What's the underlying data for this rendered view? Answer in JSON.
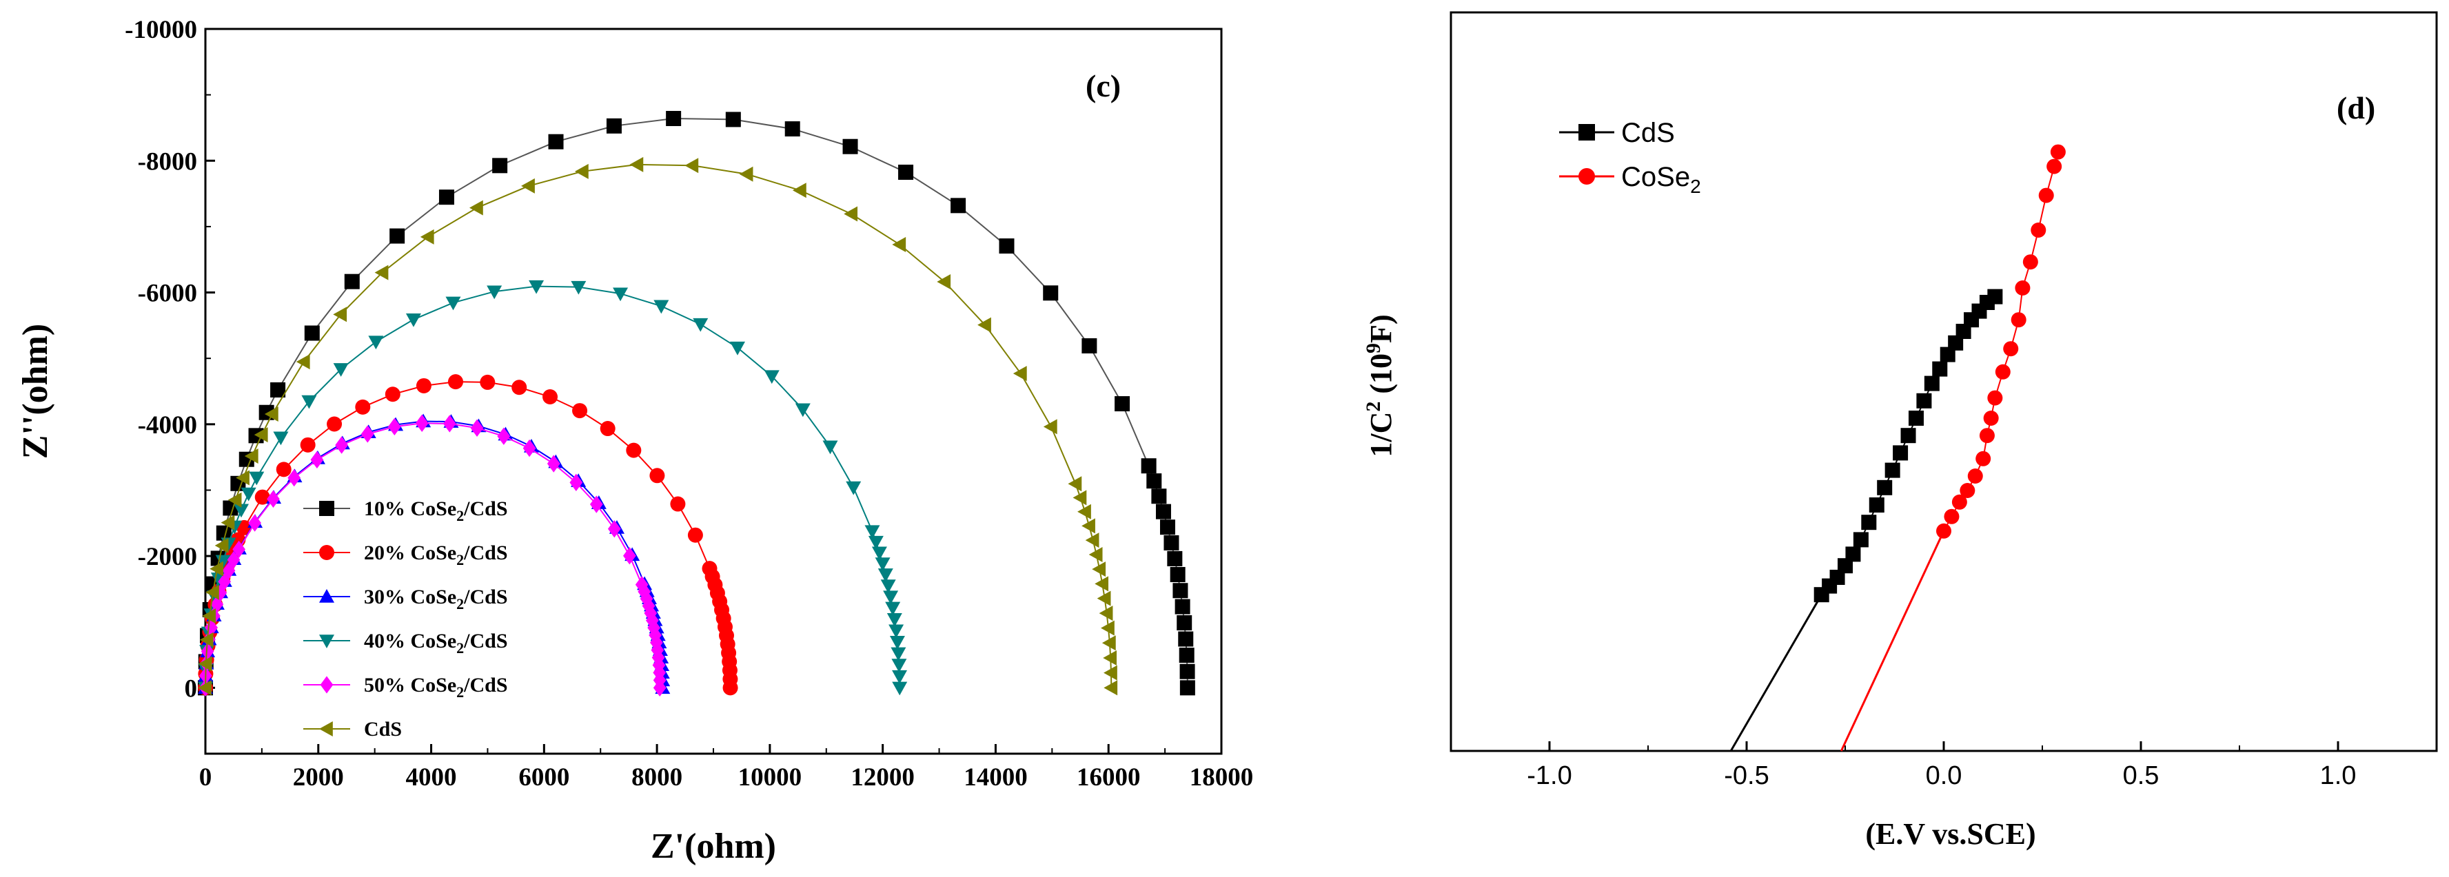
{
  "chart_data": [
    {
      "type": "scatter",
      "panel_label": "(c)",
      "title": "",
      "xlabel": "Z'(ohm)",
      "ylabel": "Z''(ohm)",
      "xlim": [
        0,
        18000
      ],
      "ylim": [
        1000,
        -10000
      ],
      "xticks": [
        "0",
        "2000",
        "4000",
        "6000",
        "8000",
        "10000",
        "12000",
        "14000",
        "16000",
        "18000"
      ],
      "yticks": [
        "0",
        "-2000",
        "-4000",
        "-6000",
        "-8000",
        "-10000"
      ],
      "legend_position": "bottom-left",
      "series": [
        {
          "name": "10% CoSe2/CdS",
          "legend_parts": [
            "10% CoSe",
            "2",
            "/CdS"
          ],
          "marker": "square",
          "color": "#000000",
          "line_color": "#555555",
          "x_end": 17400,
          "y_max": -8650,
          "x_peak": 8700
        },
        {
          "name": "20% CoSe2/CdS",
          "legend_parts": [
            "20% CoSe",
            "2",
            "/CdS"
          ],
          "marker": "circle",
          "color": "#ff0000",
          "line_color": "#ff0000",
          "x_end": 9300,
          "y_max": -4650,
          "x_peak": 4650
        },
        {
          "name": "30% CoSe2/CdS",
          "legend_parts": [
            "30% CoSe",
            "2",
            "/CdS"
          ],
          "marker": "triangle-up",
          "color": "#0000ff",
          "line_color": "#0000ff",
          "x_end": 8100,
          "y_max": -4050,
          "x_peak": 4050
        },
        {
          "name": "40% CoSe2/CdS",
          "legend_parts": [
            "40% CoSe",
            "2",
            "/CdS"
          ],
          "marker": "triangle-down",
          "color": "#008080",
          "line_color": "#008080",
          "x_end": 12300,
          "y_max": -6100,
          "x_peak": 6150
        },
        {
          "name": "50% CoSe2/CdS",
          "legend_parts": [
            "50% CoSe",
            "2",
            "/CdS"
          ],
          "marker": "diamond",
          "color": "#ff00ff",
          "line_color": "#ff00ff",
          "x_end": 8050,
          "y_max": -4020,
          "x_peak": 4025
        },
        {
          "name": "CdS",
          "legend_parts": [
            "CdS",
            "",
            ""
          ],
          "marker": "triangle-left",
          "color": "#808000",
          "line_color": "#808000",
          "x_end": 16050,
          "y_max": -7950,
          "x_peak": 8025
        }
      ]
    },
    {
      "type": "scatter",
      "panel_label": "(d)",
      "title": "",
      "xlabel": "(E.V vs.SCE)",
      "ylabel_parts": [
        "1/C",
        "2",
        " (10",
        "9",
        "F)"
      ],
      "ylabel": "1/C2 (109F)",
      "xlim": [
        -1.25,
        1.25
      ],
      "ylim": [
        0,
        10
      ],
      "xticks": [
        "-1.0",
        "-0.5",
        "0.0",
        "0.5",
        "1.0"
      ],
      "xtick_values": [
        -1.0,
        -0.5,
        0.0,
        0.5,
        1.0
      ],
      "yticks": [],
      "legend_position": "top-left",
      "series": [
        {
          "name": "CdS",
          "legend_parts": [
            "CdS",
            ""
          ],
          "marker": "square",
          "color": "#000000",
          "x": [
            -0.31,
            -0.29,
            -0.27,
            -0.25,
            -0.23,
            -0.21,
            -0.19,
            -0.17,
            -0.15,
            -0.13,
            -0.11,
            -0.09,
            -0.07,
            -0.05,
            -0.03,
            -0.01,
            0.01,
            0.03,
            0.05,
            0.07,
            0.09,
            0.11,
            0.13
          ],
          "y": [
            2.7,
            2.85,
            3.0,
            3.2,
            3.4,
            3.65,
            3.95,
            4.25,
            4.55,
            4.85,
            5.15,
            5.45,
            5.75,
            6.05,
            6.35,
            6.6,
            6.85,
            7.05,
            7.25,
            7.45,
            7.6,
            7.75,
            7.85
          ],
          "fit_line": {
            "x": [
              -0.54,
              -0.31
            ],
            "y": [
              0.0,
              2.7
            ]
          }
        },
        {
          "name": "CoSe2",
          "legend_parts": [
            "CoSe",
            "2"
          ],
          "marker": "circle",
          "color": "#ff0000",
          "x": [
            0.0,
            0.02,
            0.04,
            0.06,
            0.08,
            0.1,
            0.11,
            0.12,
            0.13,
            0.15,
            0.17,
            0.19,
            0.2,
            0.22,
            0.24,
            0.26,
            0.28,
            0.29
          ],
          "y": [
            3.8,
            4.05,
            4.3,
            4.5,
            4.75,
            5.05,
            5.45,
            5.75,
            6.1,
            6.55,
            6.95,
            7.45,
            8.0,
            8.45,
            9.0,
            9.6,
            10.1,
            10.35
          ],
          "fit_line": {
            "x": [
              -0.26,
              0.0
            ],
            "y": [
              0.0,
              3.8
            ]
          }
        }
      ]
    }
  ]
}
